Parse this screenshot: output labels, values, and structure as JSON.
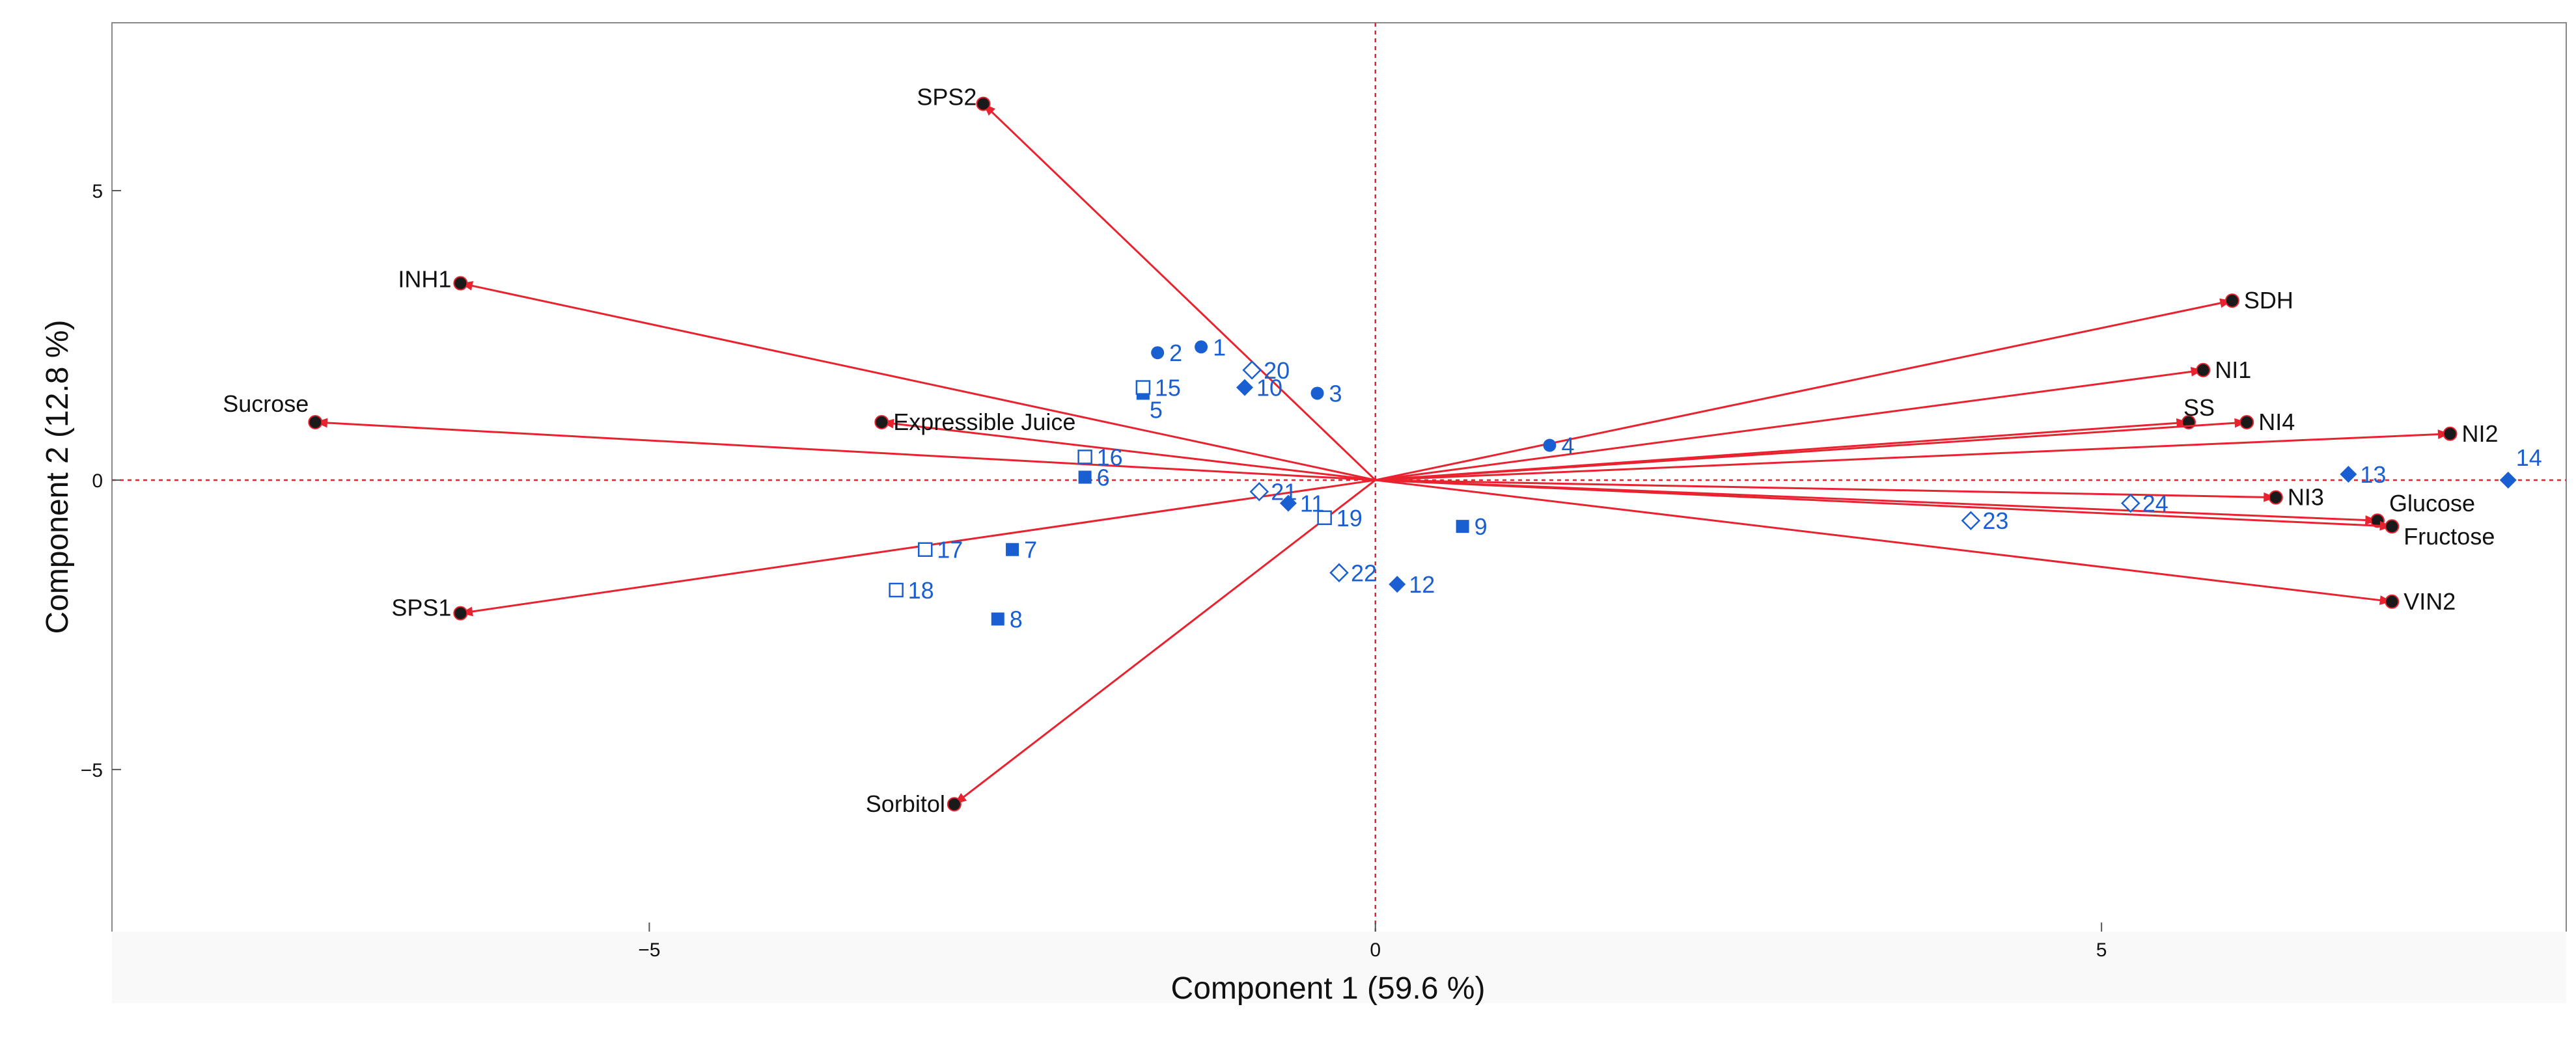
{
  "chart_data": {
    "type": "scatter",
    "subtype": "pca-biplot",
    "xlabel": "Component 1  (59.6 %)",
    "ylabel": "Component 2  (12.8 %)",
    "xlim": [
      -8.7,
      8.2
    ],
    "ylim": [
      -7.8,
      7.9
    ],
    "xticks": [
      -5,
      0,
      5
    ],
    "yticks": [
      -5,
      0,
      5
    ],
    "tick_labels": {
      "x": [
        "−5",
        "0",
        "5"
      ],
      "y": [
        "−5",
        "0",
        "5"
      ]
    },
    "reference_lines": {
      "x": 0,
      "y": 0,
      "style": "dotted",
      "color": "#e8232f"
    },
    "colors": {
      "loadings": "#e8232f",
      "loading_point": "#1a1a1a",
      "observations": "#1a5fd1",
      "axis": "#888888"
    },
    "loadings": [
      {
        "name": "SPS2",
        "x": -2.7,
        "y": 6.5
      },
      {
        "name": "INH1",
        "x": -6.3,
        "y": 3.4
      },
      {
        "name": "Sucrose",
        "x": -7.3,
        "y": 1.0
      },
      {
        "name": "Expressible  Juice",
        "x": -3.4,
        "y": 1.0
      },
      {
        "name": "SPS1",
        "x": -6.3,
        "y": -2.3
      },
      {
        "name": "Sorbitol",
        "x": -2.9,
        "y": -5.6
      },
      {
        "name": "SDH",
        "x": 5.9,
        "y": 3.1
      },
      {
        "name": "NI1",
        "x": 5.7,
        "y": 1.9
      },
      {
        "name": "SS",
        "x": 5.6,
        "y": 1.0
      },
      {
        "name": "NI4",
        "x": 6.0,
        "y": 1.0
      },
      {
        "name": "NI2",
        "x": 7.4,
        "y": 0.8
      },
      {
        "name": "NI3",
        "x": 6.2,
        "y": -0.3
      },
      {
        "name": "Glucose",
        "x": 6.9,
        "y": -0.7
      },
      {
        "name": "Fructose",
        "x": 7.0,
        "y": -0.8
      },
      {
        "name": "VIN2",
        "x": 7.0,
        "y": -2.1
      }
    ],
    "observations": [
      {
        "label": "1",
        "x": -1.2,
        "y": 2.3,
        "marker": "filled-circle"
      },
      {
        "label": "2",
        "x": -1.5,
        "y": 2.2,
        "marker": "filled-circle"
      },
      {
        "label": "3",
        "x": -0.4,
        "y": 1.5,
        "marker": "filled-circle"
      },
      {
        "label": "4",
        "x": 1.2,
        "y": 0.6,
        "marker": "filled-circle"
      },
      {
        "label": "5",
        "x": -1.6,
        "y": 1.5,
        "marker": "filled-square"
      },
      {
        "label": "6",
        "x": -2.0,
        "y": 0.05,
        "marker": "filled-square"
      },
      {
        "label": "7",
        "x": -2.5,
        "y": -1.2,
        "marker": "filled-square"
      },
      {
        "label": "8",
        "x": -2.6,
        "y": -2.4,
        "marker": "filled-square"
      },
      {
        "label": "9",
        "x": 0.6,
        "y": -0.8,
        "marker": "filled-square"
      },
      {
        "label": "10",
        "x": -0.9,
        "y": 1.6,
        "marker": "filled-diamond"
      },
      {
        "label": "11",
        "x": -0.6,
        "y": -0.4,
        "marker": "filled-diamond"
      },
      {
        "label": "12",
        "x": 0.15,
        "y": -1.8,
        "marker": "filled-diamond"
      },
      {
        "label": "13",
        "x": 6.7,
        "y": 0.1,
        "marker": "filled-diamond"
      },
      {
        "label": "14",
        "x": 7.8,
        "y": 0.0,
        "marker": "filled-diamond"
      },
      {
        "label": "15",
        "x": -1.6,
        "y": 1.6,
        "marker": "open-square"
      },
      {
        "label": "16",
        "x": -2.0,
        "y": 0.4,
        "marker": "open-square"
      },
      {
        "label": "17",
        "x": -3.1,
        "y": -1.2,
        "marker": "open-square"
      },
      {
        "label": "18",
        "x": -3.3,
        "y": -1.9,
        "marker": "open-square"
      },
      {
        "label": "19",
        "x": -0.35,
        "y": -0.65,
        "marker": "open-square"
      },
      {
        "label": "20",
        "x": -0.85,
        "y": 1.9,
        "marker": "open-diamond"
      },
      {
        "label": "21",
        "x": -0.8,
        "y": -0.2,
        "marker": "open-diamond"
      },
      {
        "label": "22",
        "x": -0.25,
        "y": -1.6,
        "marker": "open-diamond"
      },
      {
        "label": "23",
        "x": 4.1,
        "y": -0.7,
        "marker": "open-diamond"
      },
      {
        "label": "24",
        "x": 5.2,
        "y": -0.4,
        "marker": "open-diamond"
      }
    ]
  }
}
